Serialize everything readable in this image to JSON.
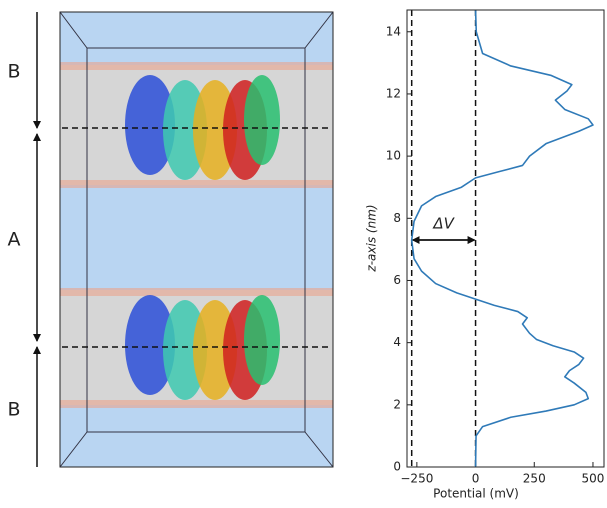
{
  "panel_labels": [
    "B",
    "A",
    "B"
  ],
  "chart_data": {
    "type": "line",
    "xlabel": "Potential (mV)",
    "ylabel": "z-axis (nm)",
    "xlim": [
      -292,
      547
    ],
    "ylim": [
      0,
      14.7
    ],
    "xticks": [
      {
        "value": -250,
        "label": "−250"
      },
      0,
      250,
      500
    ],
    "yticks": [
      0,
      2,
      4,
      6,
      8,
      10,
      12,
      14
    ],
    "vlines": [
      -272,
      0
    ],
    "annotation": {
      "text": "ΔV",
      "z": 7.3,
      "from": -272,
      "to": 0
    },
    "series": [
      {
        "color": "#2f7ab8",
        "x": [
          0,
          2,
          30,
          150,
          300,
          420,
          480,
          470,
          420,
          380,
          400,
          440,
          460,
          420,
          330,
          260,
          230,
          200,
          220,
          180,
          80,
          0,
          -80,
          -170,
          -230,
          -262,
          -272,
          -262,
          -230,
          -170,
          -60,
          0,
          100,
          200,
          230,
          300,
          440,
          500,
          480,
          380,
          340,
          390,
          410,
          320,
          150,
          30,
          3,
          0
        ],
        "y": [
          0,
          1.0,
          1.3,
          1.6,
          1.8,
          2.0,
          2.2,
          2.4,
          2.7,
          2.9,
          3.1,
          3.3,
          3.5,
          3.7,
          3.9,
          4.1,
          4.3,
          4.6,
          4.8,
          5.0,
          5.2,
          5.4,
          5.6,
          5.9,
          6.3,
          6.7,
          7.3,
          7.9,
          8.4,
          8.7,
          9.0,
          9.3,
          9.5,
          9.7,
          10.0,
          10.4,
          10.8,
          11.0,
          11.2,
          11.5,
          11.8,
          12.1,
          12.3,
          12.6,
          12.9,
          13.3,
          14.0,
          14.7
        ]
      }
    ]
  }
}
